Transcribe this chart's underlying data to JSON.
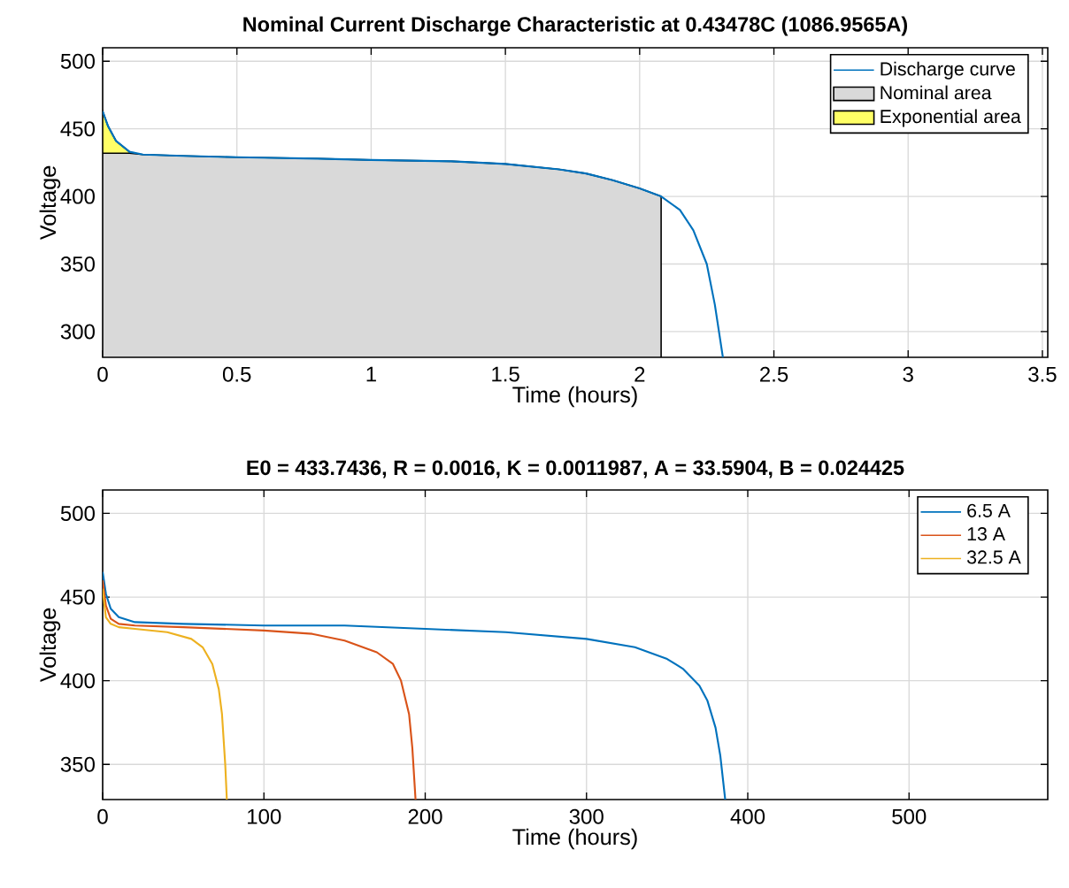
{
  "chart_data": [
    {
      "type": "line",
      "title": "Nominal Current Discharge Characteristic at 0.43478C (1086.9565A)",
      "xlabel": "Time (hours)",
      "ylabel": "Voltage",
      "xlim": [
        0,
        3.52
      ],
      "ylim": [
        281,
        510
      ],
      "xticks": [
        0,
        0.5,
        1,
        1.5,
        2,
        2.5,
        3,
        3.5
      ],
      "yticks": [
        300,
        350,
        400,
        450,
        500
      ],
      "grid": true,
      "legend": "top right",
      "series": [
        {
          "name": "Discharge curve",
          "type": "line",
          "color": "#0072bd",
          "x": [
            0,
            0.02,
            0.05,
            0.1,
            0.15,
            0.3,
            0.5,
            0.8,
            1.0,
            1.3,
            1.5,
            1.7,
            1.8,
            1.9,
            2.0,
            2.08,
            2.15,
            2.2,
            2.25,
            2.28,
            2.31
          ],
          "values": [
            463,
            452,
            441,
            433,
            431,
            430,
            429,
            428,
            427,
            426,
            424,
            420,
            417,
            412,
            406,
            400,
            390,
            375,
            350,
            320,
            281
          ]
        },
        {
          "name": "Nominal area",
          "type": "area",
          "color": "#d9d9d9",
          "x": [
            0,
            0.02,
            0.05,
            0.1,
            0.15,
            0.3,
            0.5,
            0.8,
            1.0,
            1.3,
            1.5,
            1.7,
            1.8,
            1.9,
            2.0,
            2.08
          ],
          "values": [
            432,
            432,
            432,
            432,
            431,
            430,
            429,
            428,
            427,
            426,
            424,
            420,
            417,
            412,
            406,
            400
          ]
        },
        {
          "name": "Exponential area",
          "type": "area",
          "color": "#ffff66",
          "x": [
            0,
            0.02,
            0.05,
            0.1
          ],
          "values": [
            463,
            452,
            441,
            433
          ]
        }
      ]
    },
    {
      "type": "line",
      "title": "E0 = 433.7436, R = 0.0016, K = 0.0011987, A = 33.5904, B = 0.024425",
      "xlabel": "Time (hours)",
      "ylabel": "Voltage",
      "xlim": [
        0,
        586
      ],
      "ylim": [
        329,
        514
      ],
      "xticks": [
        0,
        100,
        200,
        300,
        400,
        500
      ],
      "yticks": [
        350,
        400,
        450,
        500
      ],
      "grid": true,
      "legend": "top right",
      "series": [
        {
          "name": "6.5 A",
          "color": "#0072bd",
          "x": [
            0,
            2,
            5,
            10,
            20,
            50,
            100,
            150,
            200,
            250,
            300,
            330,
            350,
            360,
            370,
            375,
            380,
            383,
            386
          ],
          "values": [
            465,
            452,
            443,
            438,
            435,
            434,
            433,
            433,
            431,
            429,
            425,
            420,
            413,
            407,
            397,
            388,
            372,
            355,
            329
          ]
        },
        {
          "name": "13 A",
          "color": "#d95319",
          "x": [
            0,
            2,
            5,
            10,
            20,
            50,
            100,
            130,
            150,
            170,
            180,
            185,
            190,
            192,
            194
          ],
          "values": [
            460,
            445,
            437,
            434,
            433,
            432,
            430,
            428,
            424,
            417,
            410,
            400,
            380,
            360,
            329
          ]
        },
        {
          "name": "32.5 A",
          "color": "#edb120",
          "x": [
            0,
            2,
            5,
            10,
            20,
            40,
            55,
            62,
            68,
            72,
            74,
            76,
            77
          ],
          "values": [
            455,
            438,
            434,
            432,
            431,
            429,
            425,
            420,
            410,
            395,
            380,
            350,
            329
          ]
        }
      ]
    }
  ]
}
